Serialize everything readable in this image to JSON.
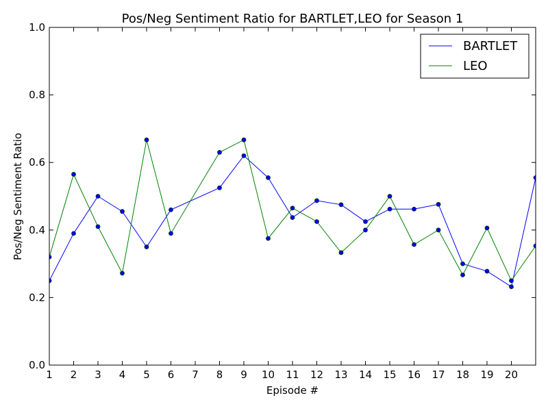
{
  "chart_data": {
    "type": "line",
    "title": "Pos/Neg Sentiment Ratio for BARTLET,LEO for Season 1",
    "xlabel": "Episode #",
    "ylabel": "Pos/Neg Sentiment Ratio",
    "xlim": [
      1,
      21
    ],
    "ylim": [
      0.0,
      1.0
    ],
    "x_ticks": [
      1,
      2,
      3,
      4,
      5,
      6,
      7,
      8,
      9,
      10,
      11,
      12,
      13,
      14,
      15,
      16,
      17,
      18,
      19,
      20
    ],
    "y_ticks": [
      "0.0",
      "0.2",
      "0.4",
      "0.6",
      "0.8",
      "1.0"
    ],
    "legend_position": "top-right",
    "grid": false,
    "series": [
      {
        "name": "BARTLET",
        "color": "#0000ff",
        "x": [
          1,
          2,
          3,
          4,
          5,
          6,
          8,
          9,
          10,
          11,
          12,
          13,
          14,
          15,
          16,
          17,
          18,
          19,
          20,
          21
        ],
        "y": [
          0.25,
          0.39,
          0.5,
          0.455,
          0.35,
          0.46,
          0.525,
          0.62,
          0.555,
          0.437,
          0.487,
          0.475,
          0.425,
          0.462,
          0.462,
          0.476,
          0.3,
          0.278,
          0.232,
          0.555
        ]
      },
      {
        "name": "LEO",
        "color": "#008000",
        "x": [
          1,
          2,
          3,
          4,
          5,
          6,
          8,
          9,
          10,
          11,
          12,
          13,
          14,
          15,
          16,
          17,
          18,
          19,
          20,
          21
        ],
        "y": [
          0.32,
          0.565,
          0.41,
          0.272,
          0.667,
          0.39,
          0.63,
          0.667,
          0.375,
          0.465,
          0.425,
          0.333,
          0.4,
          0.5,
          0.357,
          0.4,
          0.267,
          0.406,
          0.25,
          0.353
        ]
      }
    ]
  }
}
